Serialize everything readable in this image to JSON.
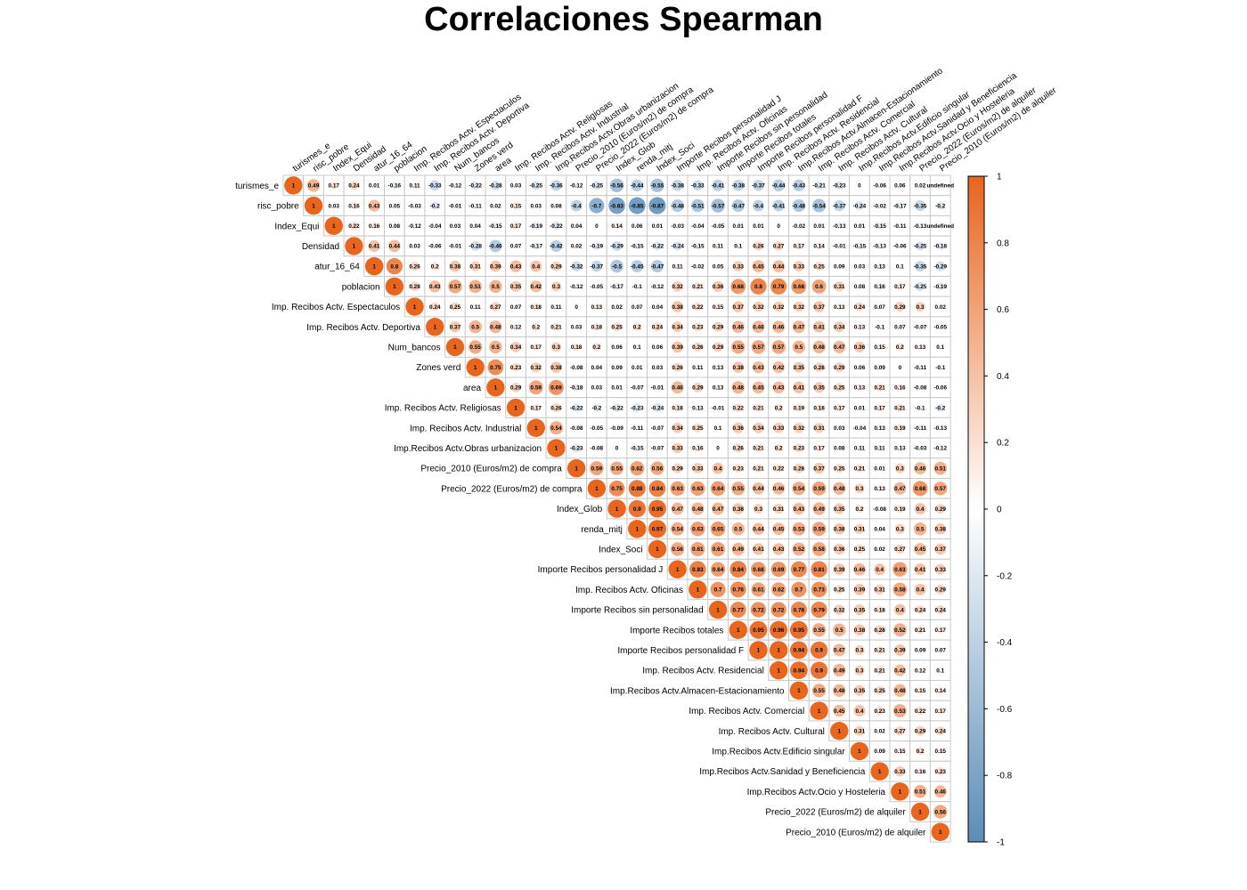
{
  "title": "Correlaciones Spearman",
  "chart_data": {
    "type": "heatmap",
    "subtype": "correlation-matrix-upper-circles",
    "method": "Spearman",
    "title": "Correlaciones Spearman",
    "variables": [
      "turismes_e",
      "risc_pobre",
      "Index_Equi",
      "Densidad",
      "atur_16_64",
      "poblacion",
      "Imp. Recibos Actv. Espectaculos",
      "Imp. Recibos Actv. Deportiva",
      "Num_bancos",
      "Zones verd",
      "area",
      "Imp. Recibos Actv. Religiosas",
      "Imp. Recibos Actv. Industrial",
      "Imp.Recibos Actv.Obras urbanizacion",
      "Precio_2010 (Euros/m2) de compra",
      "Precio_2022 (Euros/m2) de compra",
      "Index_Glob",
      "renda_mitj",
      "Index_Soci",
      "Importe Recibos personalidad J",
      "Imp. Recibos Actv. Oficinas",
      "Importe Recibos sin personalidad",
      "Importe Recibos totales",
      "Importe Recibos personalidad F",
      "Imp. Recibos Actv. Residencial",
      "Imp.Recibos Actv.Almacen-Estacionamiento",
      "Imp. Recibos Actv. Comercial",
      "Imp. Recibos Actv. Cultural",
      "Imp.Recibos Actv.Edificio singular",
      "Imp.Recibos Actv.Sanidad y Beneficiencia",
      "Imp.Recibos Actv.Ocio y Hosteleria",
      "Precio_2022 (Euros/m2) de alquiler",
      "Precio_2010 (Euros/m2) de alquiler"
    ],
    "upper_triangle_rows": [
      [
        1,
        0.49,
        0.17,
        0.24,
        0.01,
        -0.16,
        0.11,
        -0.33,
        -0.12,
        -0.22,
        -0.28,
        0.03,
        -0.25,
        -0.36,
        -0.12,
        -0.25,
        -0.56,
        -0.44,
        -0.55,
        -0.38,
        -0.33,
        -0.41,
        -0.38,
        -0.37,
        -0.44,
        -0.43,
        -0.21,
        -0.23,
        0,
        -0.06,
        0.06,
        0.02
      ],
      [
        1,
        0.03,
        0.16,
        0.43,
        0.05,
        -0.03,
        -0.2,
        -0.01,
        -0.11,
        0.02,
        0.15,
        0.03,
        0.08,
        -0.4,
        -0.7,
        -0.83,
        -0.85,
        -0.87,
        -0.48,
        -0.51,
        -0.57,
        -0.47,
        -0.4,
        -0.41,
        -0.48,
        -0.54,
        -0.37,
        -0.24,
        -0.02,
        -0.17,
        -0.35,
        -0.2
      ],
      [
        1,
        0.22,
        0.16,
        0.08,
        -0.12,
        -0.04,
        0.03,
        0.04,
        -0.15,
        0.17,
        -0.19,
        -0.22,
        0.04,
        0,
        0.14,
        0.06,
        0.01,
        -0.03,
        -0.04,
        -0.05,
        0.01,
        0.01,
        0,
        -0.02,
        0.01,
        -0.13,
        0.01,
        -0.15,
        -0.11,
        -0.13
      ],
      [
        1,
        0.41,
        0.44,
        0.03,
        -0.06,
        -0.01,
        -0.28,
        -0.46,
        0.07,
        -0.17,
        -0.42,
        0.02,
        -0.19,
        -0.29,
        -0.15,
        -0.22,
        -0.24,
        -0.15,
        0.11,
        0.1,
        0.26,
        0.27,
        0.17,
        0.14,
        -0.01,
        -0.15,
        -0.13,
        -0.06,
        -0.25,
        -0.18
      ],
      [
        1,
        0.8,
        0.26,
        0.2,
        0.38,
        0.31,
        0.39,
        0.43,
        0.4,
        0.29,
        -0.32,
        -0.37,
        -0.5,
        -0.45,
        -0.47,
        0.11,
        -0.02,
        0.05,
        0.33,
        0.45,
        0.44,
        0.33,
        0.25,
        0.09,
        0.03,
        0.13,
        0.1,
        -0.35,
        -0.29
      ],
      [
        1,
        0.28,
        0.43,
        0.57,
        0.51,
        0.5,
        0.35,
        0.42,
        0.3,
        -0.12,
        -0.05,
        -0.17,
        -0.1,
        -0.12,
        0.32,
        0.21,
        0.36,
        0.68,
        0.8,
        0.79,
        0.68,
        0.6,
        0.31,
        0.08,
        0.16,
        0.17,
        -0.25,
        -0.19
      ],
      [
        1,
        0.24,
        0.25,
        0.11,
        0.27,
        0.07,
        0.18,
        0.11,
        0,
        0.13,
        0.02,
        0.07,
        0.04,
        0.38,
        0.22,
        0.15,
        0.37,
        0.32,
        0.32,
        0.32,
        0.37,
        0.13,
        0.24,
        0.07,
        0.29,
        0.3,
        0.02
      ],
      [
        1,
        0.37,
        0.5,
        0.48,
        0.12,
        0.2,
        0.21,
        0.03,
        0.18,
        0.25,
        0.2,
        0.24,
        0.34,
        0.23,
        0.29,
        0.46,
        0.46,
        0.46,
        0.47,
        0.41,
        0.34,
        0.13,
        -0.1,
        0.07,
        -0.07,
        -0.05
      ],
      [
        1,
        0.55,
        0.5,
        0.34,
        0.17,
        0.3,
        0.18,
        0.2,
        0.06,
        0.1,
        0.06,
        0.39,
        0.26,
        0.29,
        0.55,
        0.57,
        0.57,
        0.5,
        0.48,
        0.47,
        0.36,
        0.15,
        0.2,
        0.13,
        0.1
      ],
      [
        1,
        0.75,
        0.23,
        0.32,
        0.38,
        -0.08,
        0.04,
        0.09,
        0.01,
        0.03,
        0.26,
        0.11,
        0.13,
        0.38,
        0.43,
        0.42,
        0.35,
        0.28,
        0.29,
        0.06,
        0.09,
        0,
        -0.11,
        -0.1
      ],
      [
        1,
        0.29,
        0.59,
        0.69,
        -0.18,
        0.03,
        0.01,
        -0.07,
        -0.01,
        0.46,
        0.29,
        0.13,
        0.48,
        0.45,
        0.43,
        0.41,
        0.35,
        0.25,
        0.13,
        0.21,
        0.16,
        -0.08,
        -0.06
      ],
      [
        1,
        0.17,
        0.26,
        -0.22,
        -0.2,
        -0.22,
        -0.23,
        -0.24,
        0.18,
        0.13,
        -0.01,
        0.22,
        0.21,
        0.2,
        0.19,
        0.18,
        0.17,
        0.01,
        0.17,
        0.21,
        -0.1,
        -0.2
      ],
      [
        1,
        0.54,
        -0.08,
        -0.05,
        -0.09,
        -0.11,
        -0.07,
        0.34,
        0.25,
        0.1,
        0.36,
        0.34,
        0.33,
        0.32,
        0.31,
        0.03,
        -0.04,
        0.13,
        0.19,
        -0.11,
        -0.13
      ],
      [
        1,
        -0.23,
        -0.08,
        0,
        -0.15,
        -0.07,
        0.33,
        0.16,
        0,
        0.26,
        0.21,
        0.2,
        0.23,
        0.17,
        0.08,
        0.11,
        0.11,
        0.13,
        -0.03,
        -0.12
      ],
      [
        1,
        0.59,
        0.55,
        0.62,
        0.56,
        0.29,
        0.33,
        0.4,
        0.23,
        0.21,
        0.22,
        0.28,
        0.37,
        0.25,
        0.21,
        0.01,
        0.3,
        0.46,
        0.51
      ],
      [
        1,
        0.75,
        0.88,
        0.84,
        0.63,
        0.63,
        0.64,
        0.55,
        0.44,
        0.46,
        0.54,
        0.59,
        0.48,
        0.3,
        0.13,
        0.47,
        0.68,
        0.57
      ],
      [
        1,
        0.9,
        0.95,
        0.47,
        0.48,
        0.47,
        0.38,
        0.3,
        0.31,
        0.43,
        0.49,
        0.35,
        0.2,
        -0.08,
        0.19,
        0.4,
        0.29
      ],
      [
        1,
        0.97,
        0.54,
        0.63,
        0.65,
        0.5,
        0.44,
        0.45,
        0.53,
        0.59,
        0.38,
        0.31,
        0.04,
        0.3,
        0.5,
        0.38
      ],
      [
        1,
        0.56,
        0.61,
        0.61,
        0.49,
        0.41,
        0.43,
        0.52,
        0.58,
        0.36,
        0.25,
        0.02,
        0.27,
        0.45,
        0.37
      ],
      [
        1,
        0.83,
        0.64,
        0.84,
        0.68,
        0.69,
        0.77,
        0.81,
        0.39,
        0.46,
        0.4,
        0.63,
        0.41,
        0.33
      ],
      [
        1,
        0.7,
        0.76,
        0.61,
        0.62,
        0.7,
        0.73,
        0.25,
        0.39,
        0.31,
        0.58,
        0.4,
        0.29
      ],
      [
        1,
        0.77,
        0.72,
        0.72,
        0.78,
        0.79,
        0.32,
        0.35,
        0.18,
        0.4,
        0.24,
        0.24
      ],
      [
        1,
        0.95,
        0.96,
        0.95,
        0.55,
        0.5,
        0.38,
        0.28,
        0.52,
        0.21,
        0.17
      ],
      [
        1,
        1,
        0.94,
        0.9,
        0.47,
        0.3,
        0.21,
        0.39,
        0.09,
        0.07
      ],
      [
        1,
        0.94,
        0.9,
        0.49,
        0.3,
        0.21,
        0.42,
        0.12,
        0.1
      ],
      [
        1,
        0.55,
        0.48,
        0.35,
        0.25,
        0.48,
        0.15,
        0.14
      ],
      [
        1,
        0.45,
        0.4,
        0.23,
        0.53,
        0.22,
        0.17
      ],
      [
        1,
        0.31,
        0.02,
        0.27,
        0.29,
        0.24
      ],
      [
        1,
        0.09,
        0.15,
        0.2,
        0.15
      ],
      [
        1,
        0.33,
        0.16,
        0.23
      ],
      [
        1,
        0.51,
        0.46
      ],
      [
        1,
        0.56
      ],
      [
        1
      ]
    ],
    "color_scale": {
      "min": -1,
      "max": 1,
      "low_color": "#5b8db8",
      "mid_color": "#ffffff",
      "high_color": "#e8651e",
      "ticks": [
        "1",
        "0.8",
        "0.6",
        "0.4",
        "0.2",
        "0",
        "-0.2",
        "-0.4",
        "-0.6",
        "-0.8",
        "-1"
      ],
      "tick_values": [
        1,
        0.8,
        0.6,
        0.4,
        0.2,
        0,
        -0.2,
        -0.4,
        -0.6,
        -0.8,
        -1
      ]
    },
    "grid": true,
    "legend_position": "right"
  }
}
